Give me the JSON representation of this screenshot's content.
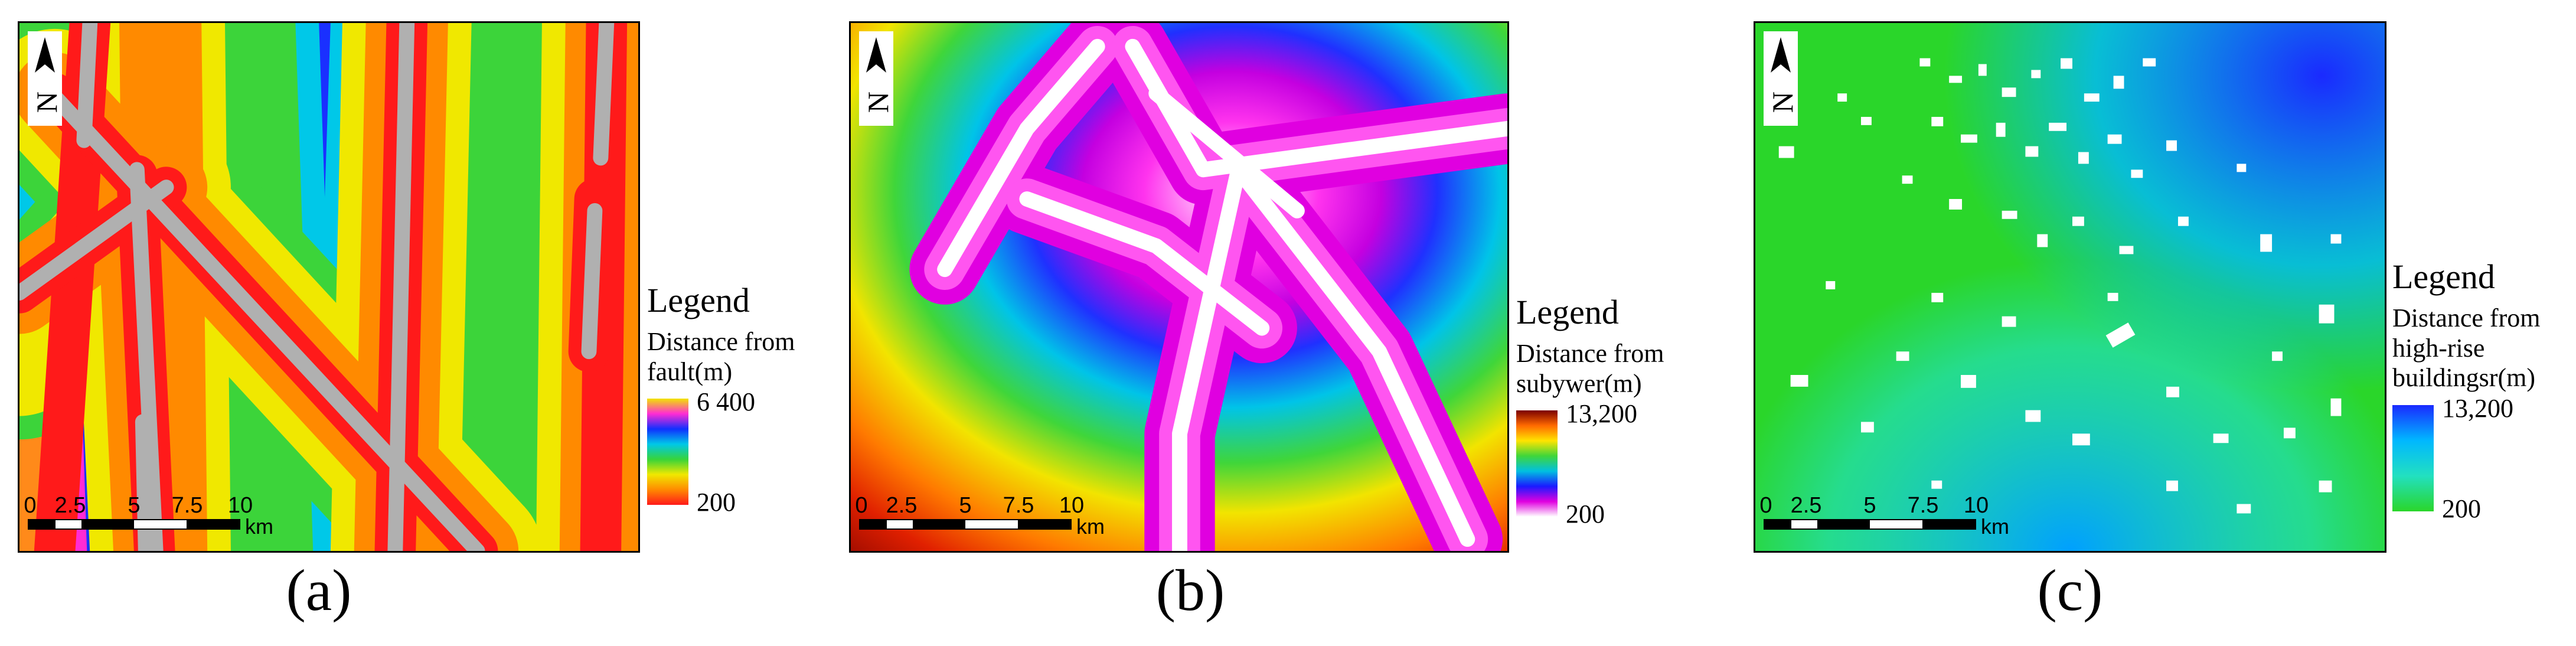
{
  "panels": [
    {
      "caption": "(a)",
      "legend_title": "Legend",
      "legend_desc_line1": "Distance from",
      "legend_desc_line2": "fault(m)",
      "legend_max": "6 400",
      "legend_min": "200",
      "ramp_colors": [
        "#f2e400",
        "#ff2bd4",
        "#1030ff",
        "#00c8e8",
        "#37d43a",
        "#f0e800",
        "#ff8a00",
        "#ff1a1a"
      ]
    },
    {
      "caption": "(b)",
      "legend_title": "Legend",
      "legend_desc_line1": "Distance from",
      "legend_desc_line2": "subywer(m)",
      "legend_max": "13,200",
      "legend_min": "200",
      "ramp_colors": [
        "#7a0000",
        "#ff6a00",
        "#ffe400",
        "#3fd63a",
        "#00c0e0",
        "#1a1aff",
        "#e000e0",
        "#ffffff"
      ]
    },
    {
      "caption": "(c)",
      "legend_title": "Legend",
      "legend_desc_line1": "Distance from",
      "legend_desc_line2": "high-rise",
      "legend_desc_line3": "buildingsr(m)",
      "legend_max": "13,200",
      "legend_min": "200",
      "ramp_colors": [
        "#1a2aff",
        "#00b8ff",
        "#22e0c0",
        "#2ad62a"
      ]
    }
  ],
  "scalebar": {
    "ticks": [
      "0",
      "2.5",
      "5",
      "7.5",
      "10"
    ],
    "unit": "km"
  },
  "north_arrow": {
    "letter": "N",
    "icon": "north-arrow-icon"
  }
}
